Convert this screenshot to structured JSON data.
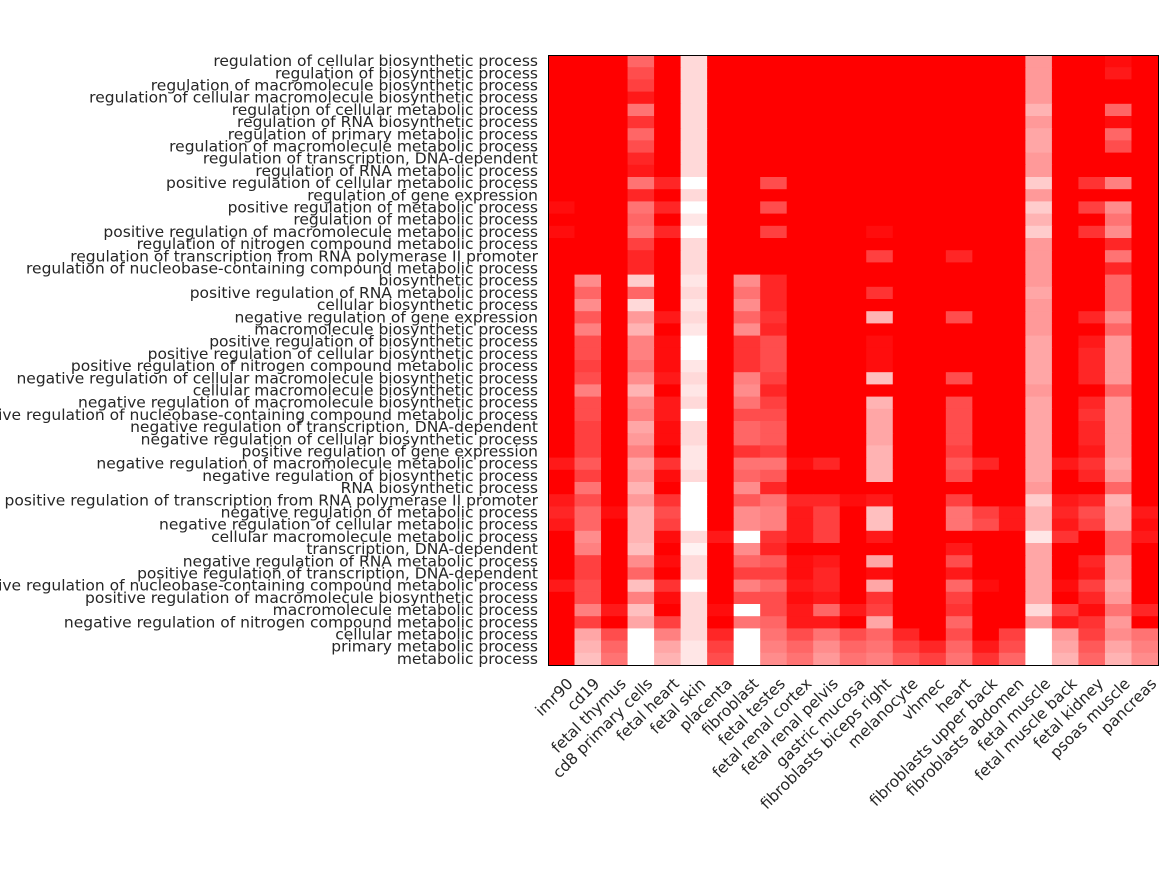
{
  "chart_data": {
    "type": "heatmap",
    "title": "",
    "xlabel": "",
    "ylabel": "",
    "color_low": "#ffffff",
    "color_high": "#ff0000",
    "value_range": [
      0,
      1
    ],
    "columns": [
      "imr90",
      "cd19",
      "fetal thymus",
      "cd8 primary cells",
      "fetal heart",
      "fetal skin",
      "placenta",
      "fibroblast",
      "fetal testes",
      "fetal renal cortex",
      "fetal renal pelvis",
      "gastric mucosa",
      "fibroblasts biceps right",
      "melanocyte",
      "vhmec",
      "heart",
      "fibroblasts upper back",
      "fibroblasts abdomen",
      "fetal muscle",
      "fetal muscle back",
      "fetal kidney",
      "psoas muscle",
      "pancreas"
    ],
    "rows": [
      "regulation of cellular biosynthetic process",
      "regulation of biosynthetic process",
      "regulation of macromolecule biosynthetic process",
      "regulation of cellular macromolecule biosynthetic process",
      "regulation of cellular metabolic process",
      "regulation of RNA biosynthetic process",
      "regulation of primary metabolic process",
      "regulation of macromolecule metabolic process",
      "regulation of transcription, DNA-dependent",
      "regulation of RNA metabolic process",
      "positive regulation of cellular metabolic process",
      "regulation of gene expression",
      "positive regulation of metabolic process",
      "regulation of metabolic process",
      "positive regulation of macromolecule metabolic process",
      "regulation of nitrogen compound metabolic process",
      "regulation of transcription from RNA polymerase II promoter",
      "regulation of nucleobase-containing compound metabolic process",
      "biosynthetic process",
      "positive regulation of RNA metabolic process",
      "cellular biosynthetic process",
      "negative regulation of gene expression",
      "macromolecule biosynthetic process",
      "positive regulation of biosynthetic process",
      "positive regulation of cellular biosynthetic process",
      "positive regulation of nitrogen compound metabolic process",
      "negative regulation of cellular macromolecule biosynthetic process",
      "cellular macromolecule biosynthetic process",
      "negative regulation of macromolecule biosynthetic process",
      "negative regulation of nucleobase-containing compound metabolic process",
      "negative regulation of transcription, DNA-dependent",
      "negative regulation of cellular biosynthetic process",
      "positive regulation of gene expression",
      "negative regulation of macromolecule metabolic process",
      "negative regulation of biosynthetic process",
      "RNA biosynthetic process",
      "positive regulation of transcription from RNA polymerase II promoter",
      "negative regulation of metabolic process",
      "negative regulation of cellular metabolic process",
      "cellular macromolecule metabolic process",
      "transcription, DNA-dependent",
      "negative regulation of RNA metabolic process",
      "positive regulation of transcription, DNA-dependent",
      "positive regulation of nucleobase-containing compound metabolic process",
      "positive regulation of macromolecule biosynthetic process",
      "macromolecule metabolic process",
      "negative regulation of nitrogen compound metabolic process",
      "cellular metabolic process",
      "primary metabolic process",
      "metabolic process"
    ],
    "values": [
      [
        1.0,
        1.0,
        1.0,
        0.6,
        1.0,
        0.15,
        1.0,
        1.0,
        1.0,
        1.0,
        1.0,
        1.0,
        1.0,
        1.0,
        1.0,
        1.0,
        1.0,
        1.0,
        0.4,
        1.0,
        1.0,
        0.95,
        1.0
      ],
      [
        1.0,
        1.0,
        1.0,
        0.7,
        1.0,
        0.15,
        1.0,
        1.0,
        1.0,
        1.0,
        1.0,
        1.0,
        1.0,
        1.0,
        1.0,
        1.0,
        1.0,
        1.0,
        0.4,
        1.0,
        1.0,
        0.9,
        1.0
      ],
      [
        1.0,
        1.0,
        1.0,
        0.75,
        1.0,
        0.15,
        1.0,
        1.0,
        1.0,
        1.0,
        1.0,
        1.0,
        1.0,
        1.0,
        1.0,
        1.0,
        1.0,
        1.0,
        0.4,
        1.0,
        1.0,
        1.0,
        1.0
      ],
      [
        1.0,
        1.0,
        1.0,
        0.9,
        1.0,
        0.15,
        1.0,
        1.0,
        1.0,
        1.0,
        1.0,
        1.0,
        1.0,
        1.0,
        1.0,
        1.0,
        1.0,
        1.0,
        0.4,
        1.0,
        1.0,
        1.0,
        1.0
      ],
      [
        1.0,
        1.0,
        1.0,
        0.55,
        1.0,
        0.15,
        1.0,
        1.0,
        1.0,
        1.0,
        1.0,
        1.0,
        1.0,
        1.0,
        1.0,
        1.0,
        1.0,
        1.0,
        0.3,
        1.0,
        1.0,
        0.6,
        1.0
      ],
      [
        1.0,
        1.0,
        1.0,
        0.8,
        1.0,
        0.15,
        1.0,
        1.0,
        1.0,
        1.0,
        1.0,
        1.0,
        1.0,
        1.0,
        1.0,
        1.0,
        1.0,
        1.0,
        0.4,
        1.0,
        1.0,
        0.95,
        1.0
      ],
      [
        1.0,
        1.0,
        1.0,
        0.6,
        1.0,
        0.15,
        1.0,
        1.0,
        1.0,
        1.0,
        1.0,
        1.0,
        1.0,
        1.0,
        1.0,
        1.0,
        1.0,
        1.0,
        0.35,
        1.0,
        1.0,
        0.6,
        1.0
      ],
      [
        1.0,
        1.0,
        1.0,
        0.7,
        1.0,
        0.15,
        1.0,
        1.0,
        1.0,
        1.0,
        1.0,
        1.0,
        1.0,
        1.0,
        1.0,
        1.0,
        1.0,
        1.0,
        0.35,
        1.0,
        1.0,
        0.7,
        1.0
      ],
      [
        1.0,
        1.0,
        1.0,
        0.85,
        1.0,
        0.15,
        1.0,
        1.0,
        1.0,
        1.0,
        1.0,
        1.0,
        1.0,
        1.0,
        1.0,
        1.0,
        1.0,
        1.0,
        0.4,
        1.0,
        1.0,
        1.0,
        1.0
      ],
      [
        1.0,
        1.0,
        1.0,
        0.9,
        1.0,
        0.15,
        1.0,
        1.0,
        1.0,
        1.0,
        1.0,
        1.0,
        1.0,
        1.0,
        1.0,
        1.0,
        1.0,
        1.0,
        0.4,
        1.0,
        1.0,
        1.0,
        1.0
      ],
      [
        1.0,
        1.0,
        1.0,
        0.55,
        0.85,
        0.0,
        1.0,
        1.0,
        0.7,
        1.0,
        1.0,
        1.0,
        1.0,
        1.0,
        1.0,
        1.0,
        1.0,
        1.0,
        0.2,
        1.0,
        0.8,
        0.5,
        1.0
      ],
      [
        1.0,
        1.0,
        1.0,
        0.85,
        1.0,
        0.15,
        1.0,
        1.0,
        1.0,
        1.0,
        1.0,
        1.0,
        1.0,
        1.0,
        1.0,
        1.0,
        1.0,
        1.0,
        0.4,
        1.0,
        1.0,
        1.0,
        1.0
      ],
      [
        0.95,
        1.0,
        1.0,
        0.55,
        0.85,
        0.0,
        1.0,
        1.0,
        0.7,
        1.0,
        1.0,
        1.0,
        1.0,
        1.0,
        1.0,
        1.0,
        1.0,
        1.0,
        0.2,
        1.0,
        0.75,
        0.45,
        1.0
      ],
      [
        1.0,
        1.0,
        1.0,
        0.6,
        1.0,
        0.1,
        1.0,
        1.0,
        1.0,
        1.0,
        1.0,
        1.0,
        1.0,
        1.0,
        1.0,
        1.0,
        1.0,
        1.0,
        0.3,
        1.0,
        1.0,
        0.55,
        1.0
      ],
      [
        0.95,
        1.0,
        1.0,
        0.55,
        0.85,
        0.0,
        1.0,
        1.0,
        0.75,
        1.0,
        1.0,
        1.0,
        0.95,
        1.0,
        1.0,
        1.0,
        1.0,
        1.0,
        0.2,
        1.0,
        0.8,
        0.45,
        1.0
      ],
      [
        1.0,
        1.0,
        1.0,
        0.75,
        1.0,
        0.15,
        1.0,
        1.0,
        1.0,
        1.0,
        1.0,
        1.0,
        1.0,
        1.0,
        1.0,
        1.0,
        1.0,
        1.0,
        0.4,
        1.0,
        1.0,
        0.85,
        1.0
      ],
      [
        1.0,
        1.0,
        1.0,
        0.85,
        1.0,
        0.15,
        1.0,
        1.0,
        1.0,
        1.0,
        1.0,
        1.0,
        0.75,
        1.0,
        1.0,
        0.85,
        1.0,
        1.0,
        0.4,
        1.0,
        1.0,
        0.55,
        1.0
      ],
      [
        1.0,
        1.0,
        1.0,
        0.85,
        1.0,
        0.15,
        1.0,
        1.0,
        1.0,
        1.0,
        1.0,
        1.0,
        1.0,
        1.0,
        1.0,
        1.0,
        1.0,
        1.0,
        0.4,
        1.0,
        1.0,
        0.85,
        1.0
      ],
      [
        1.0,
        0.45,
        1.0,
        0.2,
        1.0,
        0.1,
        1.0,
        0.45,
        0.85,
        1.0,
        1.0,
        1.0,
        1.0,
        1.0,
        1.0,
        1.0,
        1.0,
        1.0,
        0.4,
        1.0,
        1.0,
        0.6,
        1.0
      ],
      [
        1.0,
        0.6,
        1.0,
        0.6,
        1.0,
        0.15,
        1.0,
        0.55,
        0.85,
        1.0,
        1.0,
        1.0,
        0.8,
        1.0,
        1.0,
        1.0,
        1.0,
        1.0,
        0.35,
        1.0,
        1.0,
        0.6,
        1.0
      ],
      [
        1.0,
        0.45,
        1.0,
        0.15,
        1.0,
        0.1,
        1.0,
        0.45,
        0.85,
        1.0,
        1.0,
        1.0,
        1.0,
        1.0,
        1.0,
        1.0,
        1.0,
        1.0,
        0.4,
        1.0,
        1.0,
        0.6,
        1.0
      ],
      [
        1.0,
        0.65,
        1.0,
        0.4,
        0.9,
        0.15,
        1.0,
        0.6,
        0.8,
        1.0,
        1.0,
        1.0,
        0.3,
        1.0,
        1.0,
        0.7,
        1.0,
        1.0,
        0.4,
        1.0,
        0.85,
        0.45,
        1.0
      ],
      [
        1.0,
        0.5,
        1.0,
        0.3,
        1.0,
        0.1,
        1.0,
        0.45,
        0.85,
        1.0,
        1.0,
        1.0,
        1.0,
        1.0,
        1.0,
        1.0,
        1.0,
        1.0,
        0.4,
        1.0,
        1.0,
        0.6,
        1.0
      ],
      [
        1.0,
        0.7,
        1.0,
        0.5,
        0.95,
        0.0,
        1.0,
        0.8,
        0.7,
        1.0,
        1.0,
        1.0,
        0.95,
        1.0,
        1.0,
        1.0,
        1.0,
        1.0,
        0.35,
        1.0,
        0.9,
        0.4,
        1.0
      ],
      [
        1.0,
        0.7,
        1.0,
        0.5,
        0.95,
        0.0,
        1.0,
        0.8,
        0.7,
        1.0,
        1.0,
        1.0,
        0.95,
        1.0,
        1.0,
        1.0,
        1.0,
        1.0,
        0.35,
        1.0,
        0.85,
        0.4,
        1.0
      ],
      [
        1.0,
        0.75,
        1.0,
        0.55,
        0.95,
        0.1,
        1.0,
        0.8,
        0.7,
        1.0,
        1.0,
        1.0,
        0.95,
        1.0,
        1.0,
        1.0,
        1.0,
        1.0,
        0.35,
        1.0,
        0.85,
        0.4,
        1.0
      ],
      [
        1.0,
        0.7,
        1.0,
        0.45,
        0.9,
        0.15,
        1.0,
        0.5,
        0.75,
        1.0,
        1.0,
        1.0,
        0.25,
        1.0,
        1.0,
        0.7,
        1.0,
        1.0,
        0.35,
        1.0,
        0.85,
        0.4,
        1.0
      ],
      [
        1.0,
        0.5,
        1.0,
        0.3,
        1.0,
        0.1,
        1.0,
        0.45,
        0.85,
        1.0,
        1.0,
        1.0,
        1.0,
        1.0,
        1.0,
        1.0,
        1.0,
        1.0,
        0.4,
        1.0,
        1.0,
        0.6,
        1.0
      ],
      [
        1.0,
        0.7,
        1.0,
        0.45,
        0.9,
        0.15,
        1.0,
        0.55,
        0.75,
        1.0,
        1.0,
        1.0,
        0.3,
        1.0,
        1.0,
        0.7,
        1.0,
        1.0,
        0.35,
        1.0,
        0.85,
        0.4,
        1.0
      ],
      [
        1.0,
        0.7,
        1.0,
        0.5,
        0.9,
        0.0,
        1.0,
        0.7,
        0.7,
        1.0,
        1.0,
        1.0,
        0.35,
        1.0,
        1.0,
        0.7,
        1.0,
        1.0,
        0.35,
        1.0,
        0.8,
        0.4,
        1.0
      ],
      [
        1.0,
        0.75,
        1.0,
        0.35,
        0.95,
        0.15,
        1.0,
        0.6,
        0.65,
        1.0,
        1.0,
        1.0,
        0.35,
        1.0,
        1.0,
        0.7,
        1.0,
        1.0,
        0.35,
        1.0,
        0.85,
        0.4,
        1.0
      ],
      [
        1.0,
        0.75,
        1.0,
        0.4,
        0.95,
        0.15,
        1.0,
        0.6,
        0.65,
        1.0,
        1.0,
        1.0,
        0.35,
        1.0,
        1.0,
        0.7,
        1.0,
        1.0,
        0.35,
        1.0,
        0.85,
        0.4,
        1.0
      ],
      [
        1.0,
        0.75,
        1.0,
        0.5,
        1.0,
        0.1,
        1.0,
        0.8,
        0.75,
        1.0,
        1.0,
        1.0,
        0.3,
        1.0,
        1.0,
        0.75,
        1.0,
        1.0,
        0.35,
        1.0,
        0.9,
        0.4,
        1.0
      ],
      [
        0.9,
        0.65,
        1.0,
        0.35,
        0.8,
        0.1,
        1.0,
        0.55,
        0.55,
        0.95,
        0.85,
        1.0,
        0.3,
        1.0,
        1.0,
        0.65,
        0.85,
        1.0,
        0.35,
        0.9,
        0.8,
        0.35,
        1.0
      ],
      [
        1.0,
        0.75,
        1.0,
        0.4,
        0.95,
        0.15,
        1.0,
        0.6,
        0.65,
        1.0,
        1.0,
        1.0,
        0.3,
        1.0,
        1.0,
        0.7,
        1.0,
        1.0,
        0.35,
        1.0,
        0.85,
        0.4,
        1.0
      ],
      [
        1.0,
        0.55,
        1.0,
        0.3,
        1.0,
        0.0,
        1.0,
        0.45,
        0.85,
        1.0,
        1.0,
        1.0,
        1.0,
        1.0,
        1.0,
        1.0,
        1.0,
        1.0,
        0.4,
        1.0,
        1.0,
        0.6,
        1.0
      ],
      [
        0.9,
        0.7,
        1.0,
        0.4,
        0.8,
        0.0,
        1.0,
        0.65,
        0.55,
        0.85,
        0.85,
        0.95,
        0.9,
        1.0,
        1.0,
        0.75,
        1.0,
        1.0,
        0.2,
        0.9,
        0.85,
        0.3,
        1.0
      ],
      [
        0.85,
        0.6,
        0.95,
        0.3,
        0.7,
        0.0,
        1.0,
        0.45,
        0.5,
        0.9,
        0.75,
        1.0,
        0.25,
        1.0,
        1.0,
        0.55,
        0.75,
        0.9,
        0.3,
        0.85,
        0.7,
        0.35,
        0.9
      ],
      [
        0.9,
        0.6,
        1.0,
        0.3,
        0.75,
        0.0,
        1.0,
        0.45,
        0.5,
        0.9,
        0.75,
        1.0,
        0.25,
        1.0,
        1.0,
        0.55,
        0.7,
        0.9,
        0.3,
        0.9,
        0.75,
        0.35,
        0.95
      ],
      [
        1.0,
        0.45,
        1.0,
        0.3,
        0.95,
        0.15,
        0.9,
        0.0,
        0.8,
        0.9,
        0.75,
        1.0,
        0.9,
        1.0,
        1.0,
        1.0,
        1.0,
        1.0,
        0.1,
        0.8,
        1.0,
        0.6,
        0.9
      ],
      [
        1.0,
        0.5,
        1.0,
        0.25,
        1.0,
        0.05,
        1.0,
        0.45,
        0.85,
        1.0,
        1.0,
        1.0,
        1.0,
        1.0,
        1.0,
        0.9,
        1.0,
        1.0,
        0.35,
        1.0,
        1.0,
        0.6,
        1.0
      ],
      [
        1.0,
        0.75,
        1.0,
        0.45,
        0.95,
        0.15,
        1.0,
        0.6,
        0.65,
        0.95,
        0.9,
        1.0,
        0.35,
        1.0,
        1.0,
        0.7,
        1.0,
        1.0,
        0.35,
        1.0,
        0.85,
        0.4,
        1.0
      ],
      [
        1.0,
        0.75,
        1.0,
        0.6,
        1.0,
        0.15,
        1.0,
        0.75,
        0.75,
        0.95,
        0.85,
        1.0,
        0.95,
        1.0,
        1.0,
        0.9,
        1.0,
        1.0,
        0.35,
        1.0,
        0.9,
        0.4,
        1.0
      ],
      [
        0.9,
        0.7,
        1.0,
        0.25,
        0.8,
        0.0,
        1.0,
        0.5,
        0.6,
        0.9,
        0.85,
        1.0,
        0.35,
        1.0,
        1.0,
        0.6,
        0.95,
        1.0,
        0.35,
        0.95,
        0.75,
        0.35,
        1.0
      ],
      [
        1.0,
        0.7,
        1.0,
        0.5,
        0.95,
        0.15,
        1.0,
        0.7,
        0.7,
        0.95,
        0.9,
        1.0,
        0.8,
        1.0,
        1.0,
        0.75,
        1.0,
        1.0,
        0.35,
        1.0,
        0.85,
        0.4,
        1.0
      ],
      [
        1.0,
        0.5,
        0.9,
        0.25,
        1.0,
        0.15,
        0.95,
        0.0,
        0.7,
        0.9,
        0.6,
        0.9,
        0.75,
        1.0,
        1.0,
        0.8,
        1.0,
        1.0,
        0.15,
        0.75,
        0.95,
        0.55,
        0.85
      ],
      [
        1.0,
        0.75,
        1.0,
        0.35,
        0.75,
        0.15,
        1.0,
        0.55,
        0.6,
        0.9,
        0.9,
        1.0,
        0.35,
        1.0,
        1.0,
        0.6,
        1.0,
        1.0,
        0.4,
        0.9,
        0.8,
        0.4,
        1.0
      ],
      [
        1.0,
        0.35,
        0.7,
        0.0,
        0.5,
        0.15,
        0.85,
        0.0,
        0.55,
        0.7,
        0.55,
        0.7,
        0.6,
        0.85,
        1.0,
        0.7,
        1.0,
        0.75,
        0.0,
        0.4,
        0.75,
        0.45,
        0.55
      ],
      [
        1.0,
        0.3,
        0.6,
        0.0,
        0.35,
        0.1,
        0.75,
        0.0,
        0.5,
        0.6,
        0.45,
        0.6,
        0.55,
        0.75,
        0.85,
        0.6,
        0.9,
        0.7,
        0.0,
        0.35,
        0.65,
        0.35,
        0.5
      ],
      [
        1.0,
        0.25,
        0.55,
        0.0,
        0.3,
        0.1,
        0.7,
        0.0,
        0.45,
        0.55,
        0.4,
        0.55,
        0.5,
        0.65,
        0.75,
        0.55,
        0.8,
        0.6,
        0.0,
        0.3,
        0.6,
        0.3,
        0.45
      ]
    ]
  }
}
